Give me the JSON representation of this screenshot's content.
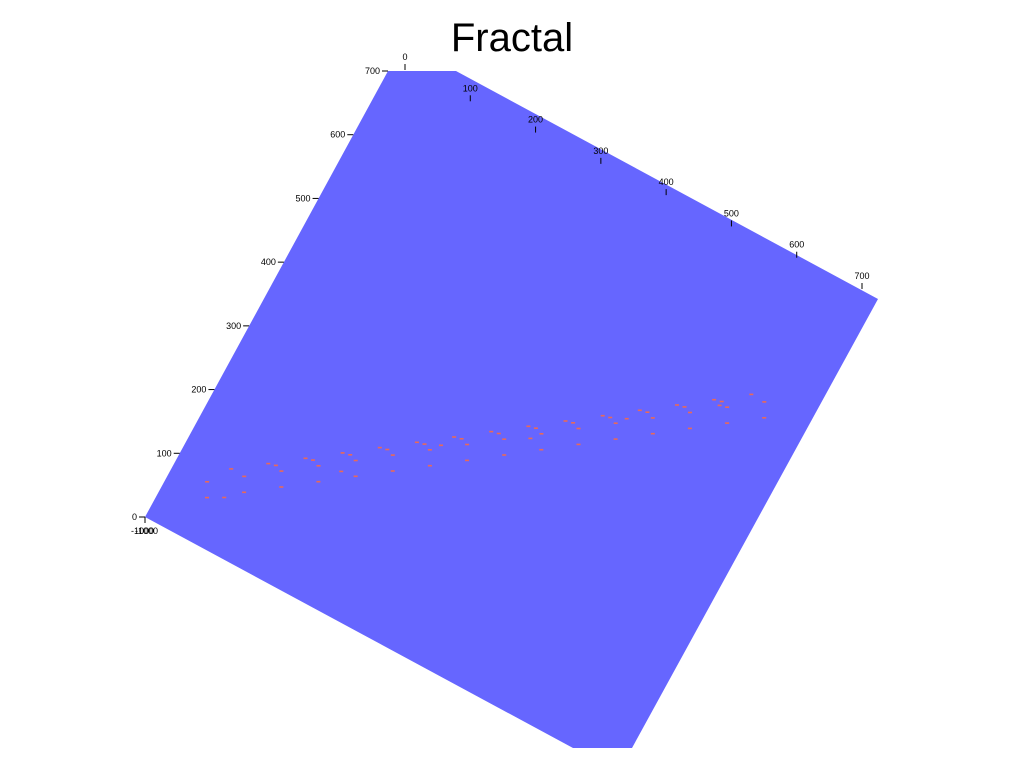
{
  "chart_data": {
    "type": "surface-3d",
    "title": "Fractal",
    "surface_color": "#6666ff",
    "point_color": "#ff6a3d",
    "axes": {
      "y_axis": {
        "ticks": [
          0,
          100,
          200,
          300,
          400,
          500,
          600,
          700
        ],
        "range": [
          0,
          700
        ]
      },
      "x_axis": {
        "ticks": [
          0,
          100,
          200,
          300,
          400,
          500,
          600,
          700
        ],
        "range": [
          0,
          700
        ]
      },
      "z_axis": {
        "tick_label": "-1000"
      }
    },
    "grid": false,
    "legend": "none",
    "points": [
      [
        50,
        80
      ],
      [
        90,
        108
      ],
      [
        130,
        136
      ],
      [
        170,
        164
      ],
      [
        210,
        192
      ],
      [
        250,
        220
      ],
      [
        290,
        248
      ],
      [
        330,
        276
      ],
      [
        370,
        304
      ],
      [
        410,
        332
      ],
      [
        450,
        360
      ],
      [
        490,
        388
      ],
      [
        530,
        416
      ],
      [
        570,
        444
      ],
      [
        610,
        472
      ],
      [
        650,
        500
      ],
      [
        70,
        110
      ],
      [
        110,
        138
      ],
      [
        150,
        166
      ],
      [
        190,
        194
      ],
      [
        230,
        222
      ],
      [
        270,
        250
      ],
      [
        310,
        278
      ],
      [
        350,
        306
      ],
      [
        390,
        334
      ],
      [
        430,
        362
      ],
      [
        470,
        390
      ],
      [
        510,
        418
      ],
      [
        550,
        446
      ],
      [
        590,
        474
      ],
      [
        630,
        502
      ],
      [
        60,
        60
      ],
      [
        100,
        88
      ],
      [
        140,
        116
      ],
      [
        180,
        144
      ],
      [
        220,
        172
      ],
      [
        260,
        200
      ],
      [
        300,
        228
      ],
      [
        340,
        256
      ],
      [
        380,
        284
      ],
      [
        420,
        312
      ],
      [
        460,
        340
      ],
      [
        500,
        368
      ],
      [
        540,
        396
      ],
      [
        580,
        424
      ],
      [
        620,
        452
      ],
      [
        660,
        480
      ],
      [
        120,
        140
      ],
      [
        160,
        168
      ],
      [
        200,
        196
      ],
      [
        240,
        224
      ],
      [
        280,
        252
      ],
      [
        320,
        280
      ],
      [
        360,
        308
      ],
      [
        400,
        336
      ],
      [
        440,
        364
      ],
      [
        480,
        392
      ],
      [
        520,
        420
      ],
      [
        560,
        448
      ],
      [
        600,
        476
      ],
      [
        80,
        70
      ],
      [
        200,
        170
      ],
      [
        300,
        260
      ],
      [
        400,
        320
      ],
      [
        500,
        400
      ],
      [
        600,
        470
      ]
    ]
  }
}
